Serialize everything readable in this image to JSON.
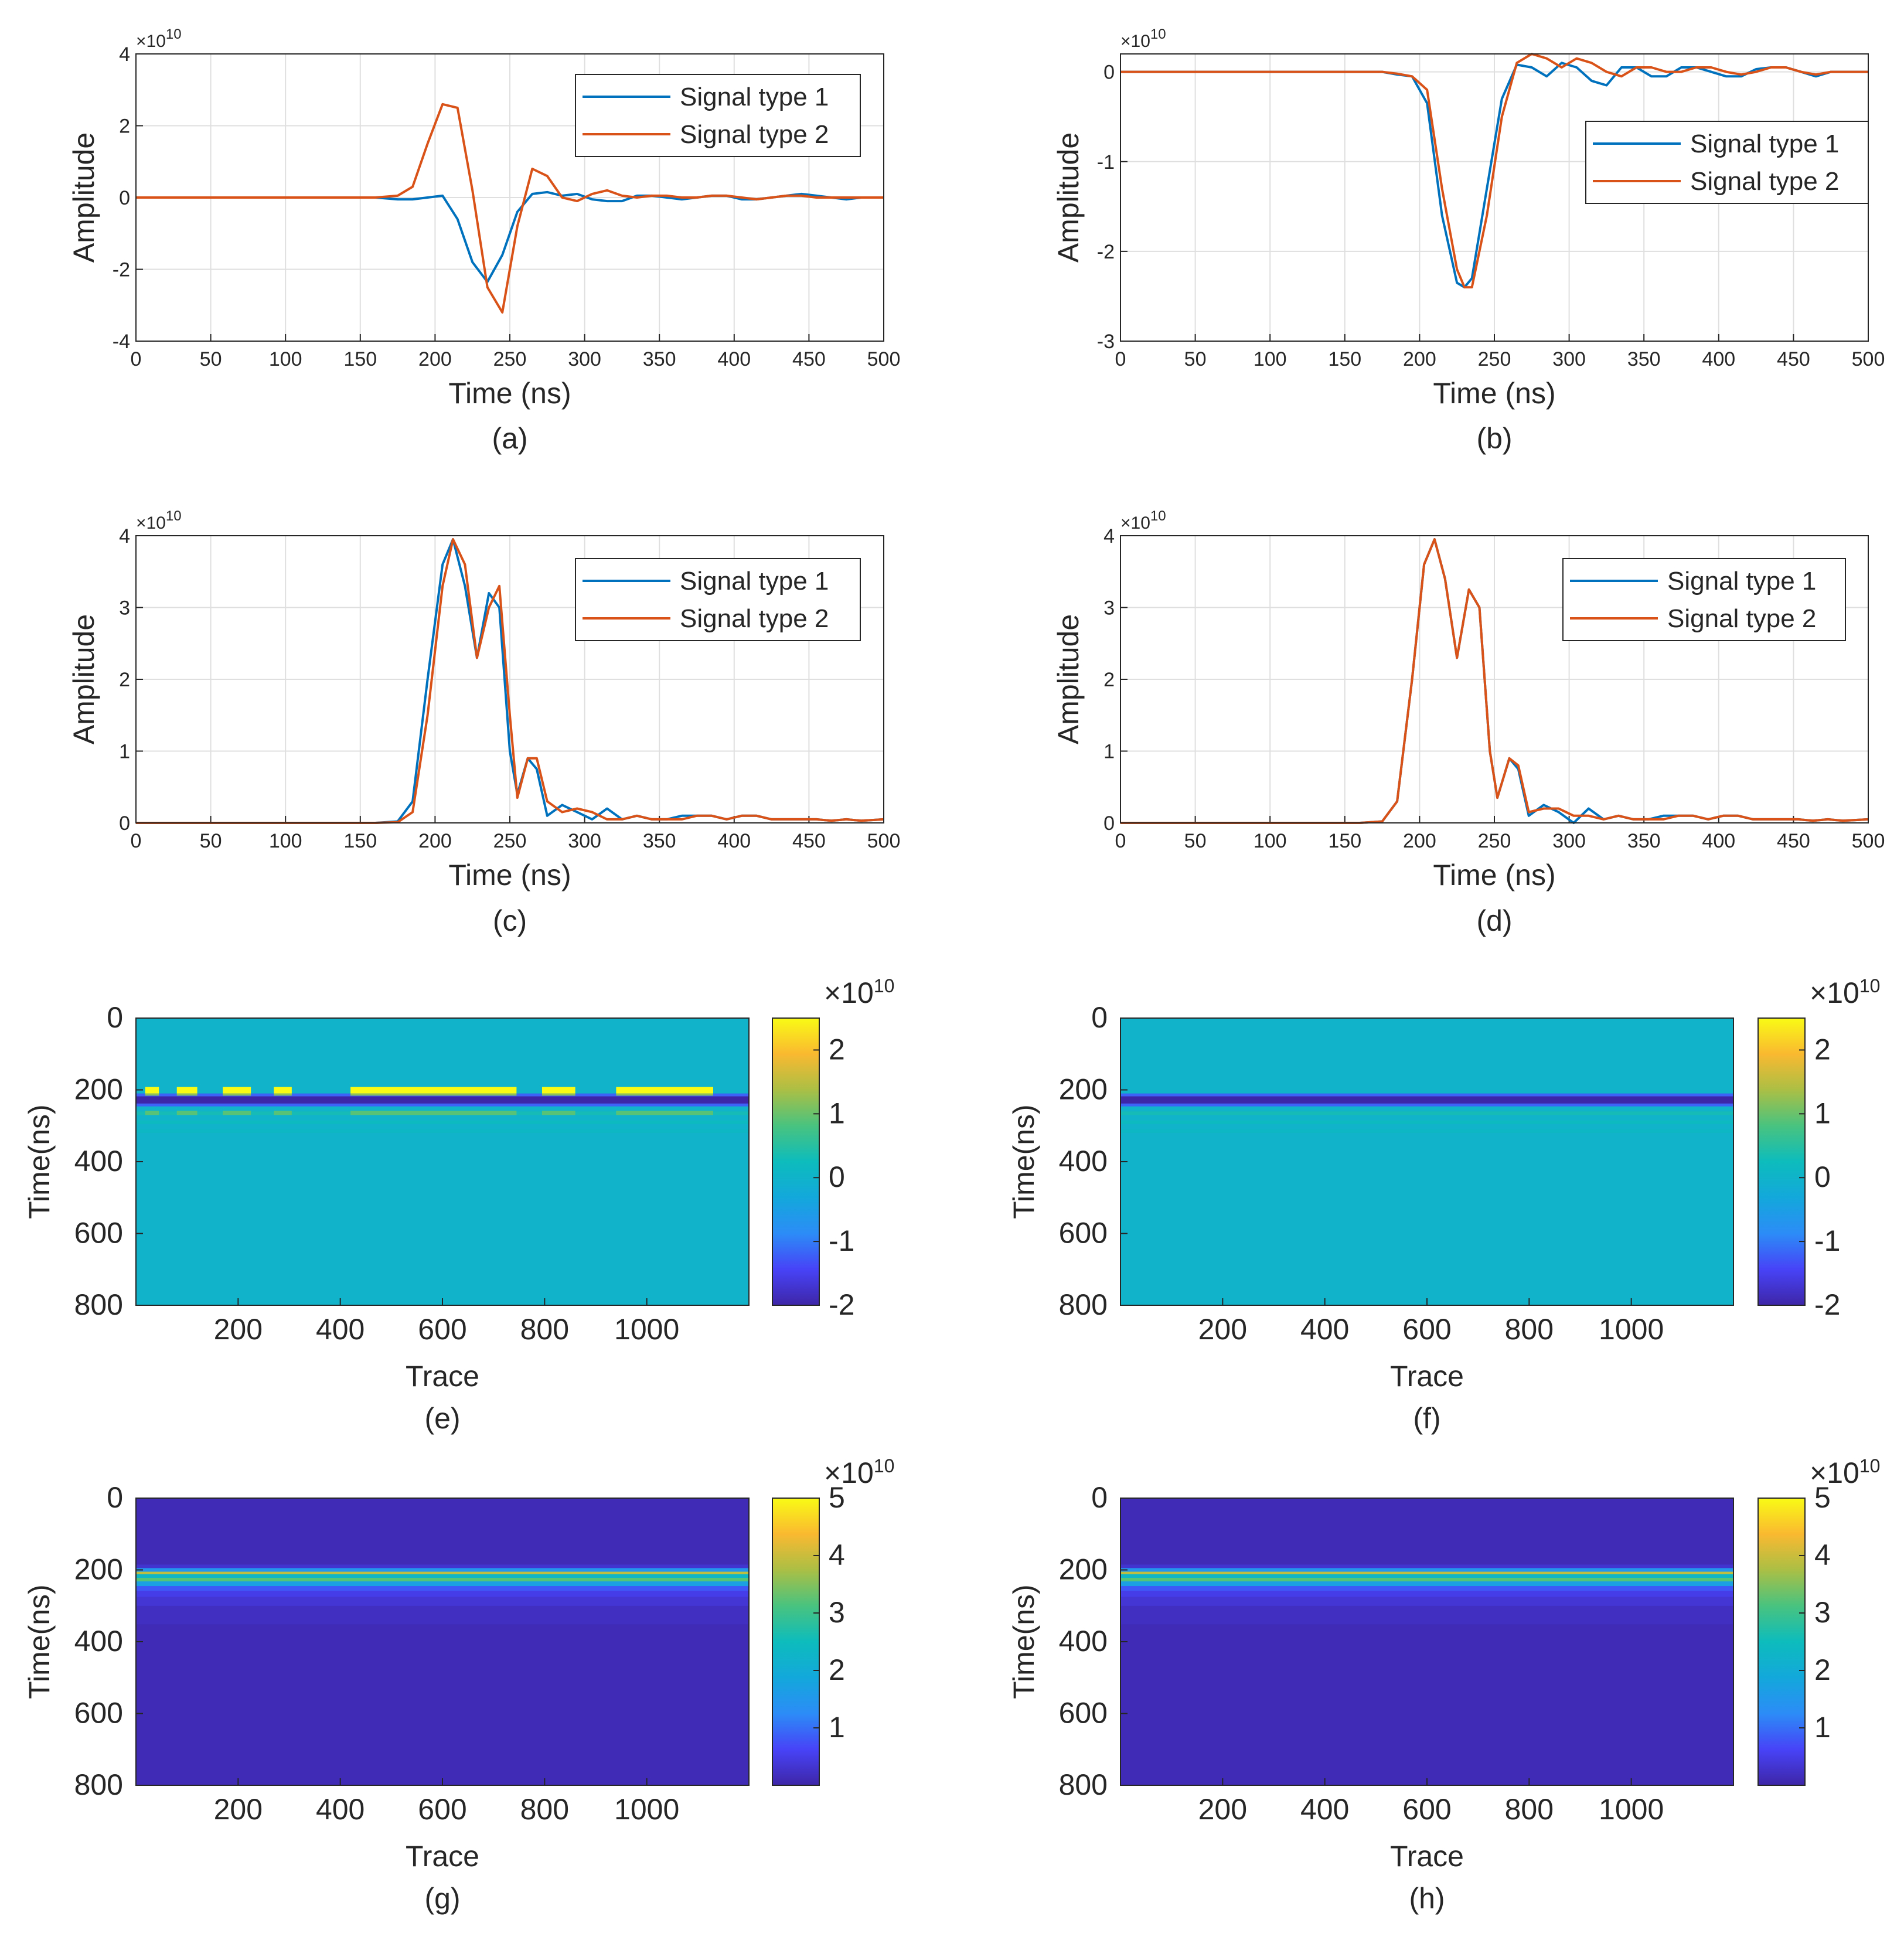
{
  "chart_data": [
    {
      "id": "a",
      "type": "line",
      "caption": "(a)",
      "xlabel": "Time (ns)",
      "ylabel": "Amplitude",
      "exponent": "×10",
      "exponent_power": "10",
      "xlim": [
        0,
        500
      ],
      "ylim": [
        -4,
        4
      ],
      "x_ticks": [
        "0",
        "50",
        "100",
        "150",
        "200",
        "250",
        "300",
        "350",
        "400",
        "450",
        "500"
      ],
      "y_ticks": [
        "-4",
        "-2",
        "0",
        "2",
        "4"
      ],
      "x": [
        0,
        160,
        175,
        185,
        195,
        205,
        215,
        225,
        235,
        245,
        255,
        265,
        275,
        285,
        295,
        305,
        315,
        325,
        335,
        345,
        355,
        365,
        375,
        385,
        395,
        405,
        415,
        425,
        435,
        445,
        455,
        465,
        475,
        485,
        500
      ],
      "series": [
        {
          "name": "Signal type 1",
          "color": "#0072BD",
          "values": [
            0,
            0,
            -0.05,
            -0.05,
            0,
            0.05,
            -0.6,
            -1.8,
            -2.35,
            -1.6,
            -0.4,
            0.1,
            0.15,
            0.05,
            0.1,
            -0.05,
            -0.1,
            -0.1,
            0.05,
            0.05,
            0,
            -0.05,
            0,
            0.05,
            0.05,
            -0.05,
            -0.05,
            0,
            0.05,
            0.1,
            0.05,
            0,
            -0.05,
            0,
            0
          ]
        },
        {
          "name": "Signal type 2",
          "color": "#D95319",
          "values": [
            0,
            0,
            0.05,
            0.3,
            1.5,
            2.6,
            2.5,
            0.2,
            -2.5,
            -3.2,
            -0.8,
            0.8,
            0.6,
            0,
            -0.1,
            0.1,
            0.2,
            0.05,
            0,
            0.05,
            0.05,
            0,
            0,
            0.05,
            0.05,
            0,
            -0.05,
            0,
            0.05,
            0.05,
            0,
            0,
            0,
            0,
            0
          ]
        }
      ],
      "legend_position": "top-right"
    },
    {
      "id": "b",
      "type": "line",
      "caption": "(b)",
      "xlabel": "Time (ns)",
      "ylabel": "Amplitude",
      "exponent": "×10",
      "exponent_power": "10",
      "xlim": [
        0,
        500
      ],
      "ylim": [
        -3,
        0.2
      ],
      "x_ticks": [
        "0",
        "50",
        "100",
        "150",
        "200",
        "250",
        "300",
        "350",
        "400",
        "450",
        "500"
      ],
      "y_ticks": [
        "-3",
        "-2",
        "-1",
        "0"
      ],
      "x": [
        0,
        160,
        175,
        185,
        195,
        205,
        215,
        225,
        230,
        235,
        245,
        255,
        265,
        275,
        285,
        295,
        305,
        315,
        325,
        335,
        345,
        355,
        365,
        375,
        385,
        395,
        405,
        415,
        425,
        435,
        445,
        455,
        465,
        475,
        485,
        500
      ],
      "series": [
        {
          "name": "Signal type 1",
          "color": "#0072BD",
          "values": [
            0,
            0,
            0,
            -0.03,
            -0.05,
            -0.35,
            -1.6,
            -2.35,
            -2.4,
            -2.3,
            -1.3,
            -0.3,
            0.08,
            0.05,
            -0.05,
            0.1,
            0.05,
            -0.1,
            -0.15,
            0.05,
            0.05,
            -0.05,
            -0.05,
            0.05,
            0.05,
            0,
            -0.05,
            -0.05,
            0.03,
            0.05,
            0.05,
            0,
            -0.05,
            0,
            0,
            0
          ]
        },
        {
          "name": "Signal type 2",
          "color": "#D95319",
          "values": [
            0,
            0,
            0,
            -0.02,
            -0.05,
            -0.2,
            -1.3,
            -2.2,
            -2.4,
            -2.4,
            -1.6,
            -0.5,
            0.1,
            0.2,
            0.15,
            0.05,
            0.15,
            0.1,
            0,
            -0.05,
            0.05,
            0.05,
            0,
            0,
            0.05,
            0.05,
            0,
            -0.03,
            0,
            0.05,
            0.05,
            0,
            -0.03,
            0,
            0,
            0
          ]
        }
      ],
      "legend_position": "right"
    },
    {
      "id": "c",
      "type": "line",
      "caption": "(c)",
      "xlabel": "Time (ns)",
      "ylabel": "Amplitude",
      "exponent": "×10",
      "exponent_power": "10",
      "xlim": [
        0,
        500
      ],
      "ylim": [
        0,
        4
      ],
      "x_ticks": [
        "0",
        "50",
        "100",
        "150",
        "200",
        "250",
        "300",
        "350",
        "400",
        "450",
        "500"
      ],
      "y_ticks": [
        "0",
        "1",
        "2",
        "3",
        "4"
      ],
      "x": [
        0,
        160,
        175,
        185,
        195,
        205,
        212,
        220,
        228,
        236,
        243,
        250,
        255,
        262,
        268,
        275,
        285,
        295,
        305,
        315,
        325,
        335,
        345,
        355,
        365,
        375,
        385,
        395,
        405,
        415,
        425,
        435,
        445,
        455,
        465,
        475,
        485,
        500
      ],
      "series": [
        {
          "name": "Signal type 1",
          "color": "#0072BD",
          "values": [
            0,
            0,
            0.02,
            0.3,
            2.0,
            3.6,
            3.95,
            3.3,
            2.3,
            3.2,
            3.0,
            1.0,
            0.4,
            0.9,
            0.75,
            0.1,
            0.25,
            0.15,
            0.05,
            0.2,
            0.05,
            0.1,
            0.05,
            0.05,
            0.1,
            0.1,
            0.1,
            0.05,
            0.1,
            0.1,
            0.05,
            0.05,
            0.05,
            0.05,
            0.03,
            0.05,
            0.03,
            0.05
          ]
        },
        {
          "name": "Signal type 2",
          "color": "#D95319",
          "values": [
            0,
            0,
            0.01,
            0.15,
            1.5,
            3.3,
            3.95,
            3.6,
            2.3,
            3.0,
            3.3,
            1.5,
            0.35,
            0.9,
            0.9,
            0.3,
            0.15,
            0.2,
            0.15,
            0.05,
            0.05,
            0.1,
            0.05,
            0.05,
            0.05,
            0.1,
            0.1,
            0.05,
            0.1,
            0.1,
            0.05,
            0.05,
            0.05,
            0.05,
            0.03,
            0.05,
            0.03,
            0.05
          ]
        }
      ],
      "legend_position": "top-right"
    },
    {
      "id": "d",
      "type": "line",
      "caption": "(d)",
      "xlabel": "Time (ns)",
      "ylabel": "Amplitude",
      "exponent": "×10",
      "exponent_power": "10",
      "xlim": [
        0,
        500
      ],
      "ylim": [
        0,
        4
      ],
      "x_ticks": [
        "0",
        "50",
        "100",
        "150",
        "200",
        "250",
        "300",
        "350",
        "400",
        "450",
        "500"
      ],
      "y_ticks": [
        "0",
        "1",
        "2",
        "3",
        "4"
      ],
      "x": [
        0,
        160,
        175,
        185,
        195,
        203,
        210,
        217,
        225,
        233,
        240,
        247,
        252,
        260,
        266,
        273,
        283,
        293,
        303,
        313,
        323,
        333,
        343,
        353,
        363,
        373,
        383,
        393,
        403,
        413,
        423,
        433,
        443,
        453,
        463,
        473,
        483,
        500
      ],
      "series": [
        {
          "name": "Signal type 1",
          "color": "#0072BD",
          "values": [
            0,
            0,
            0.02,
            0.3,
            2.0,
            3.6,
            3.95,
            3.4,
            2.3,
            3.25,
            3.0,
            1.0,
            0.35,
            0.9,
            0.75,
            0.1,
            0.25,
            0.15,
            0.0,
            0.2,
            0.05,
            0.1,
            0.05,
            0.05,
            0.1,
            0.1,
            0.1,
            0.05,
            0.1,
            0.1,
            0.05,
            0.05,
            0.05,
            0.05,
            0.03,
            0.05,
            0.03,
            0.05
          ]
        },
        {
          "name": "Signal type 2",
          "color": "#D95319",
          "values": [
            0,
            0,
            0.02,
            0.3,
            2.0,
            3.6,
            3.95,
            3.4,
            2.3,
            3.25,
            3.0,
            1.0,
            0.35,
            0.9,
            0.8,
            0.15,
            0.2,
            0.2,
            0.1,
            0.1,
            0.05,
            0.1,
            0.05,
            0.05,
            0.05,
            0.1,
            0.1,
            0.05,
            0.1,
            0.1,
            0.05,
            0.05,
            0.05,
            0.05,
            0.03,
            0.05,
            0.03,
            0.05
          ]
        }
      ],
      "legend_position": "top-right"
    },
    {
      "id": "e",
      "type": "heatmap",
      "caption": "(e)",
      "xlabel": "Trace",
      "ylabel": "Time(ns)",
      "exponent": "×10",
      "exponent_power": "10",
      "xlim": [
        0,
        1200
      ],
      "ylim": [
        0,
        800
      ],
      "x_ticks": [
        "200",
        "400",
        "600",
        "800",
        "1000"
      ],
      "y_ticks": [
        "0",
        "200",
        "400",
        "600",
        "800"
      ],
      "clim": [
        -2,
        2.5
      ],
      "colorbar_ticks": [
        "-2",
        "-1",
        "0",
        "1",
        "2"
      ],
      "band": {
        "dark_center_ns": 228,
        "dark_value": -2.1
      },
      "positive_segments": [
        [
          18,
          45
        ],
        [
          80,
          120
        ],
        [
          170,
          225
        ],
        [
          270,
          305
        ],
        [
          420,
          745
        ],
        [
          795,
          860
        ],
        [
          940,
          1130
        ]
      ]
    },
    {
      "id": "f",
      "type": "heatmap",
      "caption": "(f)",
      "xlabel": "Trace",
      "ylabel": "Time(ns)",
      "exponent": "×10",
      "exponent_power": "10",
      "xlim": [
        0,
        1200
      ],
      "ylim": [
        0,
        800
      ],
      "x_ticks": [
        "200",
        "400",
        "600",
        "800",
        "1000"
      ],
      "y_ticks": [
        "0",
        "200",
        "400",
        "600",
        "800"
      ],
      "clim": [
        -2,
        2.5
      ],
      "colorbar_ticks": [
        "-2",
        "-1",
        "0",
        "1",
        "2"
      ],
      "band": {
        "dark_center_ns": 228,
        "dark_value": -2.1
      },
      "positive_segments": []
    },
    {
      "id": "g",
      "type": "heatmap",
      "caption": "(g)",
      "xlabel": "Trace",
      "ylabel": "Time(ns)",
      "exponent": "×10",
      "exponent_power": "10",
      "xlim": [
        0,
        1200
      ],
      "ylim": [
        0,
        800
      ],
      "x_ticks": [
        "200",
        "400",
        "600",
        "800",
        "1000"
      ],
      "y_ticks": [
        "0",
        "200",
        "400",
        "600",
        "800"
      ],
      "clim": [
        0,
        5
      ],
      "colorbar_ticks": [
        "1",
        "2",
        "3",
        "4",
        "5"
      ],
      "envelope_rows": [
        [
          195,
          0.3
        ],
        [
          205,
          1.5
        ],
        [
          212,
          3.9
        ],
        [
          222,
          2.3
        ],
        [
          232,
          3.2
        ],
        [
          245,
          1.7
        ],
        [
          258,
          0.8
        ],
        [
          275,
          0.5
        ],
        [
          300,
          0.35
        ],
        [
          350,
          0.2
        ],
        [
          800,
          0.1
        ]
      ]
    },
    {
      "id": "h",
      "type": "heatmap",
      "caption": "(h)",
      "xlabel": "Trace",
      "ylabel": "Time(ns)",
      "exponent": "×10",
      "exponent_power": "10",
      "xlim": [
        0,
        1200
      ],
      "ylim": [
        0,
        800
      ],
      "x_ticks": [
        "200",
        "400",
        "600",
        "800",
        "1000"
      ],
      "y_ticks": [
        "0",
        "200",
        "400",
        "600",
        "800"
      ],
      "clim": [
        0,
        5
      ],
      "colorbar_ticks": [
        "1",
        "2",
        "3",
        "4",
        "5"
      ],
      "envelope_rows": [
        [
          195,
          0.3
        ],
        [
          205,
          1.5
        ],
        [
          212,
          3.9
        ],
        [
          222,
          2.3
        ],
        [
          232,
          3.2
        ],
        [
          245,
          1.7
        ],
        [
          258,
          0.8
        ],
        [
          275,
          0.5
        ],
        [
          300,
          0.35
        ],
        [
          350,
          0.2
        ],
        [
          800,
          0.1
        ]
      ]
    }
  ]
}
